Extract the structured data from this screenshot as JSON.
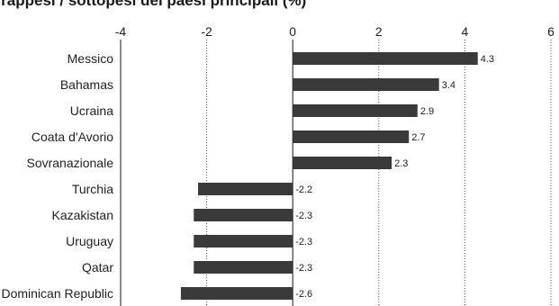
{
  "chart_data": {
    "type": "bar",
    "orientation": "horizontal",
    "title": "Sovrappesi / sottopesi dei paesi principali (%)",
    "categories": [
      "Messico",
      "Bahamas",
      "Ucraina",
      "Coata d'Avorio",
      "Sovranazionale",
      "Turchia",
      "Kazakistan",
      "Uruguay",
      "Qatar",
      "Dominican Republic"
    ],
    "values": [
      4.3,
      3.4,
      2.9,
      2.7,
      2.3,
      -2.2,
      -2.3,
      -2.3,
      -2.3,
      -2.6
    ],
    "value_labels": [
      "4.3",
      "3.4",
      "2.9",
      "2.7",
      "2.3",
      "-2.2",
      "-2.3",
      "-2.3",
      "-2.3",
      "-2.6"
    ],
    "xlim": [
      -4,
      6
    ],
    "xticks": [
      -4,
      -2,
      0,
      2,
      4,
      6
    ],
    "tick_labels": [
      "-4",
      "-2",
      "0",
      "2",
      "4",
      "6"
    ],
    "grid": "vertical dotted",
    "legend": "none",
    "bar_color": "#3a3a3a"
  }
}
